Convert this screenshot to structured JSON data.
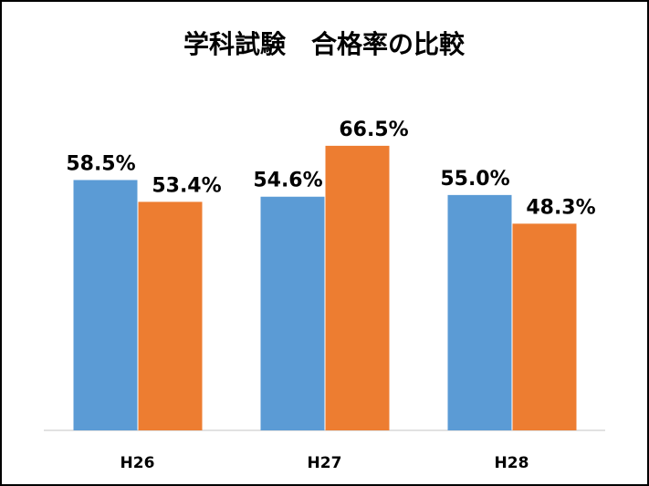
{
  "chart_data": {
    "type": "bar",
    "title": "学科試験　合格率の比較",
    "categories": [
      "H26",
      "H27",
      "H28"
    ],
    "series": [
      {
        "color": "#5b9bd5",
        "values": [
          58.5,
          54.6,
          55.0
        ],
        "value_labels": [
          "58.5%",
          "54.6%",
          "55.0%"
        ]
      },
      {
        "color": "#ed7d31",
        "values": [
          53.4,
          66.5,
          48.3
        ],
        "value_labels": [
          "53.4%",
          "66.5%",
          "48.3%"
        ]
      }
    ],
    "ylim": [
      0,
      75
    ]
  }
}
